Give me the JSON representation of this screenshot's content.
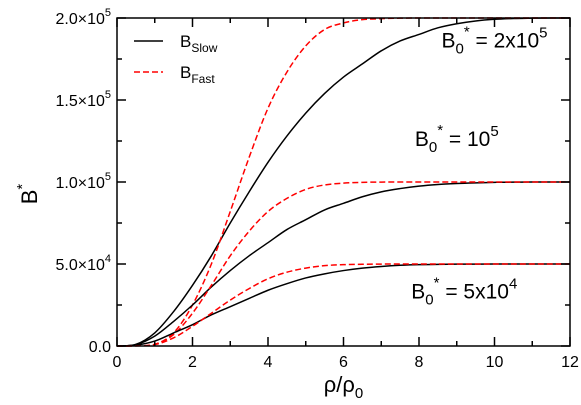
{
  "chart_data": {
    "type": "line",
    "xlabel": "ρ/ρ",
    "xlabel_sub": "0",
    "ylabel": "B",
    "ylabel_sup": "*",
    "xlim": [
      0,
      12
    ],
    "ylim": [
      0,
      200000
    ],
    "x_ticks": [
      0,
      2,
      4,
      6,
      8,
      10,
      12
    ],
    "x_tick_labels": [
      "0",
      "2",
      "4",
      "6",
      "8",
      "10",
      "12"
    ],
    "y_ticks": [
      0,
      50000,
      100000,
      150000,
      200000
    ],
    "y_tick_labels": [
      {
        "mant": "0.0",
        "exp": ""
      },
      {
        "mant": "5.0×10",
        "exp": "4"
      },
      {
        "mant": "1.0×10",
        "exp": "5"
      },
      {
        "mant": "1.5×10",
        "exp": "5"
      },
      {
        "mant": "2.0×10",
        "exp": "5"
      }
    ],
    "grid": false,
    "legend": {
      "position": "top-left",
      "entries": [
        {
          "base": "B",
          "sub": "Slow",
          "style": "solid",
          "color": "#000000"
        },
        {
          "base": "B",
          "sub": "Fast",
          "style": "dashed",
          "color": "#ff0000"
        }
      ]
    },
    "annotations": [
      {
        "parts": [
          "B",
          "0",
          "*",
          " = 2x10",
          "5"
        ],
        "anchor_x": 10.0,
        "anchor_y": 182000
      },
      {
        "parts": [
          "B",
          "0",
          "*",
          " = 10",
          "5"
        ],
        "anchor_x": 9.0,
        "anchor_y": 122000
      },
      {
        "parts": [
          "B",
          "0",
          "*",
          " = 5x10",
          "4"
        ],
        "anchor_x": 9.2,
        "anchor_y": 29000
      }
    ],
    "x": [
      0,
      0.5,
      1,
      1.5,
      2,
      2.5,
      3,
      3.5,
      4,
      4.5,
      5,
      5.5,
      6,
      6.5,
      7,
      7.5,
      8,
      8.5,
      9,
      9.5,
      10,
      10.5,
      11,
      11.5,
      12
    ],
    "series": [
      {
        "group": "B0* = 2x10^5",
        "legend": "Slow",
        "style": "solid",
        "color": "#000000",
        "values": [
          0,
          1000,
          8000,
          21000,
          37000,
          55000,
          75000,
          94000,
          112000,
          128000,
          142000,
          154000,
          164000,
          172000,
          180000,
          186000,
          190000,
          194000,
          196500,
          198200,
          199200,
          199700,
          199900,
          200000,
          200000
        ]
      },
      {
        "group": "B0* = 2x10^5",
        "legend": "Fast",
        "style": "dashed",
        "color": "#ff0000",
        "values": [
          0,
          200,
          1000,
          8000,
          25000,
          50000,
          82000,
          115000,
          145000,
          167000,
          183000,
          193000,
          197000,
          199000,
          199600,
          199900,
          200000,
          200000,
          200000,
          200000,
          200000,
          200000,
          200000,
          200000,
          200000
        ]
      },
      {
        "group": "B0* = 10^5",
        "legend": "Slow",
        "style": "solid",
        "color": "#000000",
        "values": [
          0,
          800,
          6000,
          15000,
          25000,
          36000,
          46000,
          55000,
          63000,
          71000,
          77000,
          83000,
          87000,
          91000,
          94000,
          96000,
          97500,
          98500,
          99100,
          99500,
          99800,
          99900,
          100000,
          100000,
          100000
        ]
      },
      {
        "group": "B0* = 10^5",
        "legend": "Fast",
        "style": "dashed",
        "color": "#ff0000",
        "values": [
          0,
          100,
          1000,
          7000,
          20000,
          37000,
          55000,
          70000,
          82000,
          90000,
          95500,
          98200,
          99300,
          99800,
          99950,
          100000,
          100000,
          100000,
          100000,
          100000,
          100000,
          100000,
          100000,
          100000,
          100000
        ]
      },
      {
        "group": "B0* = 5x10^4",
        "legend": "Slow",
        "style": "solid",
        "color": "#000000",
        "values": [
          0,
          500,
          3000,
          8000,
          13000,
          19000,
          24000,
          29000,
          34000,
          38000,
          41500,
          44000,
          46000,
          47500,
          48500,
          49200,
          49600,
          49800,
          49900,
          49950,
          50000,
          50000,
          50000,
          50000,
          50000
        ]
      },
      {
        "group": "B0* = 5x10^4",
        "legend": "Fast",
        "style": "dashed",
        "color": "#ff0000",
        "values": [
          0,
          100,
          800,
          5000,
          12000,
          20000,
          28000,
          35000,
          41000,
          45000,
          47500,
          49000,
          49600,
          49850,
          49950,
          50000,
          50000,
          50000,
          50000,
          50000,
          50000,
          50000,
          50000,
          50000,
          50000
        ]
      }
    ]
  }
}
